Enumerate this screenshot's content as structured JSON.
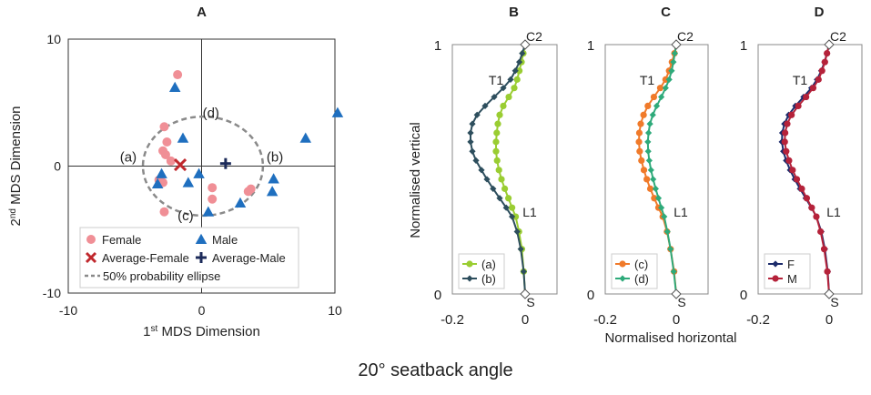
{
  "caption": "20°  seatback angle",
  "chart_data": [
    {
      "panel": "A",
      "type": "scatter",
      "title": "A",
      "xlabel_prefix": "1",
      "xlabel_sup": "st",
      "xlabel_rest": " MDS Dimension",
      "ylabel_prefix": "2",
      "ylabel_sup": "nd",
      "ylabel_rest": " MDS Dimension",
      "xlim": [
        -10,
        10
      ],
      "ylim": [
        -10,
        10
      ],
      "xticks": [
        -10,
        0,
        10
      ],
      "yticks": [
        -10,
        0,
        10
      ],
      "series": [
        {
          "name": "Female",
          "marker": "circle",
          "color": "#f08f96",
          "points": [
            [
              -1.8,
              7.2
            ],
            [
              -2.8,
              3.1
            ],
            [
              -2.6,
              1.9
            ],
            [
              -2.9,
              1.2
            ],
            [
              -2.7,
              0.9
            ],
            [
              -2.3,
              0.4
            ],
            [
              -3.2,
              -1.1
            ],
            [
              -2.9,
              -1.3
            ],
            [
              0.8,
              -1.7
            ],
            [
              0.8,
              -2.6
            ],
            [
              3.7,
              -1.8
            ],
            [
              3.5,
              -2.0
            ],
            [
              -2.8,
              -3.6
            ]
          ]
        },
        {
          "name": "Male",
          "marker": "triangle",
          "color": "#1f6fbf",
          "points": [
            [
              -2.0,
              6.2
            ],
            [
              -1.4,
              2.2
            ],
            [
              -3.0,
              -0.6
            ],
            [
              -0.2,
              -0.6
            ],
            [
              -1.0,
              -1.3
            ],
            [
              -3.3,
              -1.4
            ],
            [
              5.4,
              -1.0
            ],
            [
              5.3,
              -2.0
            ],
            [
              2.9,
              -2.9
            ],
            [
              0.5,
              -3.6
            ],
            [
              7.8,
              2.2
            ],
            [
              10.2,
              4.2
            ]
          ]
        },
        {
          "name": "Average-Female",
          "marker": "x",
          "color": "#c0282d",
          "points": [
            [
              -1.6,
              0.1
            ]
          ]
        },
        {
          "name": "Average-Male",
          "marker": "plus",
          "color": "#1c2b5a",
          "points": [
            [
              1.8,
              0.2
            ]
          ]
        }
      ],
      "ellipse": {
        "name": "50% probability ellipse",
        "center": [
          0.1,
          0
        ],
        "rx": 4.5,
        "ry": 3.9
      },
      "annotations": [
        {
          "text": "(a)",
          "x": -5.5,
          "y": 0.7
        },
        {
          "text": "(b)",
          "x": 5.5,
          "y": 0.7
        },
        {
          "text": "(c)",
          "x": -1.2,
          "y": -3.9
        },
        {
          "text": "(d)",
          "x": 0.7,
          "y": 4.2
        }
      ]
    },
    {
      "panel": "B",
      "type": "line",
      "title": "B",
      "xticks": [
        -0.2,
        0
      ],
      "yticks": [
        0,
        1
      ],
      "xlim": [
        -0.2,
        0.02
      ],
      "ylim": [
        0,
        1
      ],
      "point_labels": [
        {
          "text": "C2",
          "x": 0.0,
          "y": 0.97
        },
        {
          "text": "T1",
          "x": -0.04,
          "y": 0.82
        },
        {
          "text": "L1",
          "x": 0.0,
          "y": 0.32
        },
        {
          "text": "S",
          "x": 0.0,
          "y": -0.03
        }
      ],
      "series": [
        {
          "name": "(a)",
          "color": "#9acd32",
          "marker": "circle",
          "x": [
            0.0,
            -0.005,
            -0.01,
            -0.016,
            -0.022,
            -0.03,
            -0.045,
            -0.06,
            -0.07,
            -0.075,
            -0.078,
            -0.08,
            -0.08,
            -0.077,
            -0.072,
            -0.065,
            -0.056,
            -0.046,
            -0.036,
            -0.026,
            -0.017,
            -0.009,
            -0.004,
            0.0
          ],
          "y": [
            1.0,
            0.965,
            0.93,
            0.895,
            0.86,
            0.826,
            0.79,
            0.754,
            0.718,
            0.682,
            0.646,
            0.61,
            0.572,
            0.535,
            0.497,
            0.46,
            0.422,
            0.384,
            0.346,
            0.31,
            0.25,
            0.18,
            0.09,
            0.0
          ]
        },
        {
          "name": "(b)",
          "color": "#2d4e5d",
          "marker": "diamond",
          "x": [
            0.0,
            -0.008,
            -0.016,
            -0.027,
            -0.04,
            -0.06,
            -0.085,
            -0.11,
            -0.132,
            -0.145,
            -0.15,
            -0.15,
            -0.145,
            -0.135,
            -0.12,
            -0.105,
            -0.088,
            -0.07,
            -0.052,
            -0.036,
            -0.022,
            -0.012,
            -0.004,
            0.0
          ],
          "y": [
            1.0,
            0.965,
            0.93,
            0.895,
            0.86,
            0.826,
            0.79,
            0.754,
            0.718,
            0.682,
            0.646,
            0.61,
            0.572,
            0.535,
            0.497,
            0.46,
            0.422,
            0.384,
            0.346,
            0.31,
            0.25,
            0.18,
            0.09,
            0.0
          ]
        }
      ]
    },
    {
      "panel": "C",
      "type": "line",
      "title": "C",
      "xlabel": "Normalised horizontal",
      "xticks": [
        -0.2,
        0
      ],
      "yticks": [
        0,
        1
      ],
      "xlim": [
        -0.2,
        0.02
      ],
      "ylim": [
        0,
        1
      ],
      "point_labels": [
        {
          "text": "C2",
          "x": 0.0,
          "y": 0.97
        },
        {
          "text": "T1",
          "x": -0.04,
          "y": 0.82
        },
        {
          "text": "L1",
          "x": 0.0,
          "y": 0.32
        },
        {
          "text": "S",
          "x": 0.0,
          "y": -0.03
        }
      ],
      "series": [
        {
          "name": "(c)",
          "color": "#f07a2a",
          "marker": "circle",
          "x": [
            0.0,
            -0.005,
            -0.012,
            -0.02,
            -0.03,
            -0.045,
            -0.063,
            -0.08,
            -0.092,
            -0.1,
            -0.104,
            -0.105,
            -0.103,
            -0.098,
            -0.091,
            -0.083,
            -0.073,
            -0.062,
            -0.05,
            -0.038,
            -0.026,
            -0.016,
            -0.006,
            0.0
          ],
          "y": [
            1.0,
            0.965,
            0.93,
            0.895,
            0.86,
            0.826,
            0.79,
            0.754,
            0.718,
            0.682,
            0.646,
            0.61,
            0.572,
            0.535,
            0.497,
            0.46,
            0.422,
            0.384,
            0.346,
            0.31,
            0.25,
            0.18,
            0.09,
            0.0
          ]
        },
        {
          "name": "(d)",
          "color": "#2eaa7a",
          "marker": "diamond",
          "x": [
            0.0,
            -0.004,
            -0.008,
            -0.013,
            -0.02,
            -0.03,
            -0.042,
            -0.055,
            -0.066,
            -0.074,
            -0.078,
            -0.08,
            -0.079,
            -0.076,
            -0.071,
            -0.065,
            -0.058,
            -0.05,
            -0.042,
            -0.034,
            -0.025,
            -0.016,
            -0.007,
            0.0
          ],
          "y": [
            1.0,
            0.965,
            0.93,
            0.895,
            0.86,
            0.826,
            0.79,
            0.754,
            0.718,
            0.682,
            0.646,
            0.61,
            0.572,
            0.535,
            0.497,
            0.46,
            0.422,
            0.384,
            0.346,
            0.31,
            0.25,
            0.18,
            0.09,
            0.0
          ]
        }
      ]
    },
    {
      "panel": "D",
      "type": "line",
      "title": "D",
      "xticks": [
        -0.2,
        0
      ],
      "yticks": [
        0,
        1
      ],
      "xlim": [
        -0.2,
        0.02
      ],
      "ylim": [
        0,
        1
      ],
      "point_labels": [
        {
          "text": "C2",
          "x": 0.0,
          "y": 0.97
        },
        {
          "text": "T1",
          "x": -0.04,
          "y": 0.82
        },
        {
          "text": "L1",
          "x": 0.0,
          "y": 0.32
        },
        {
          "text": "S",
          "x": 0.0,
          "y": -0.03
        }
      ],
      "series": [
        {
          "name": "F",
          "color": "#1c2b6b",
          "marker": "diamond",
          "x": [
            0.0,
            -0.006,
            -0.013,
            -0.022,
            -0.034,
            -0.05,
            -0.072,
            -0.095,
            -0.114,
            -0.126,
            -0.132,
            -0.133,
            -0.129,
            -0.121,
            -0.11,
            -0.097,
            -0.082,
            -0.066,
            -0.05,
            -0.036,
            -0.022,
            -0.012,
            -0.004,
            0.0
          ],
          "y": [
            1.0,
            0.965,
            0.93,
            0.895,
            0.86,
            0.826,
            0.79,
            0.754,
            0.718,
            0.682,
            0.646,
            0.61,
            0.572,
            0.535,
            0.497,
            0.46,
            0.422,
            0.384,
            0.346,
            0.31,
            0.25,
            0.18,
            0.09,
            0.0
          ]
        },
        {
          "name": "M",
          "color": "#b5223a",
          "marker": "circle",
          "x": [
            0.0,
            -0.006,
            -0.012,
            -0.02,
            -0.03,
            -0.045,
            -0.065,
            -0.087,
            -0.106,
            -0.118,
            -0.124,
            -0.125,
            -0.121,
            -0.113,
            -0.103,
            -0.091,
            -0.077,
            -0.063,
            -0.049,
            -0.036,
            -0.024,
            -0.014,
            -0.005,
            0.0
          ],
          "y": [
            1.0,
            0.965,
            0.93,
            0.895,
            0.86,
            0.826,
            0.79,
            0.754,
            0.718,
            0.682,
            0.646,
            0.61,
            0.572,
            0.535,
            0.497,
            0.46,
            0.422,
            0.384,
            0.346,
            0.31,
            0.25,
            0.18,
            0.09,
            0.0
          ]
        }
      ]
    }
  ],
  "shared": {
    "ylabel": "Normalised vertical"
  }
}
